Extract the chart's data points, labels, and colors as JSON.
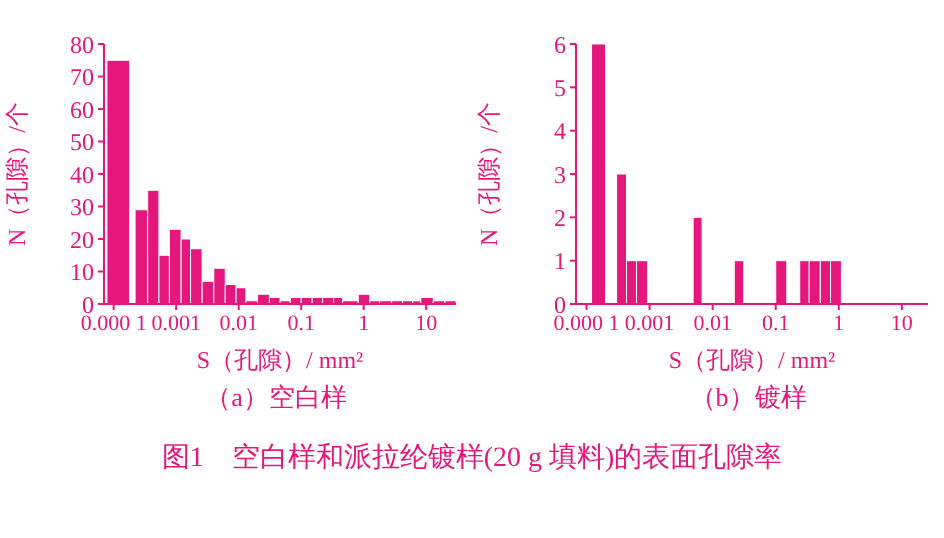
{
  "chart_data": [
    {
      "type": "histogram",
      "title": "（a）空白样",
      "xlabel": "S（孔隙）/ mm²",
      "ylabel": "N（孔隙）/个",
      "log": "x",
      "color": "#e5177d",
      "bins": [
        7.8e-05,
        0.00018,
        0.00022,
        0.00035,
        0.00053,
        0.00078,
        0.0012,
        0.0017,
        0.0026,
        0.004,
        0.0061,
        0.0091,
        0.013,
        0.02,
        0.031,
        0.046,
        0.067,
        0.1,
        0.15,
        0.22,
        0.33,
        0.46,
        0.82,
        1.25,
        1.8,
        2.8,
        4.2,
        6.1,
        8.2,
        13,
        20,
        30
      ],
      "values": [
        75,
        0,
        29,
        35,
        15,
        23,
        20,
        17,
        7,
        11,
        6,
        5,
        1,
        3,
        2,
        1,
        2,
        2,
        2,
        2,
        2,
        1,
        3,
        1,
        1,
        1,
        1,
        1,
        2,
        1,
        1
      ],
      "xlim": [
        7e-05,
        30
      ],
      "xticks": [
        {
          "value": 0.0001,
          "label": "0.000 1"
        },
        0.001,
        0.01,
        0.1,
        1,
        10
      ],
      "ylim": [
        0,
        80
      ],
      "yticks": [
        0,
        10,
        20,
        30,
        40,
        50,
        60,
        70,
        80
      ],
      "annotations": [
        "图1　空白样和派拉纶镀样(20 g 填料)的表面孔隙率"
      ]
    },
    {
      "type": "histogram",
      "title": "（b）镀样",
      "xlabel": "S（孔隙）/ mm²",
      "ylabel": "N（孔隙）/个",
      "log": "x",
      "color": "#e5177d",
      "bins": [
        0.00012,
        0.0002,
        0.0003,
        0.00043,
        0.00062,
        0.00093,
        0.0049,
        0.0068,
        0.022,
        0.031,
        0.1,
        0.15,
        0.24,
        0.34,
        0.51,
        0.74,
        1.1
      ],
      "values": [
        6,
        0,
        3,
        1,
        1,
        0,
        2,
        0,
        1,
        0,
        1,
        0,
        1,
        1,
        1,
        1
      ],
      "xlim": [
        6.8e-05,
        26
      ],
      "xticks": [
        {
          "value": 0.0001,
          "label": "0.000 1"
        },
        0.001,
        0.01,
        0.1,
        1,
        10
      ],
      "ylim": [
        0,
        6
      ],
      "yticks": [
        0,
        1,
        2,
        3,
        4,
        5,
        6
      ]
    }
  ]
}
